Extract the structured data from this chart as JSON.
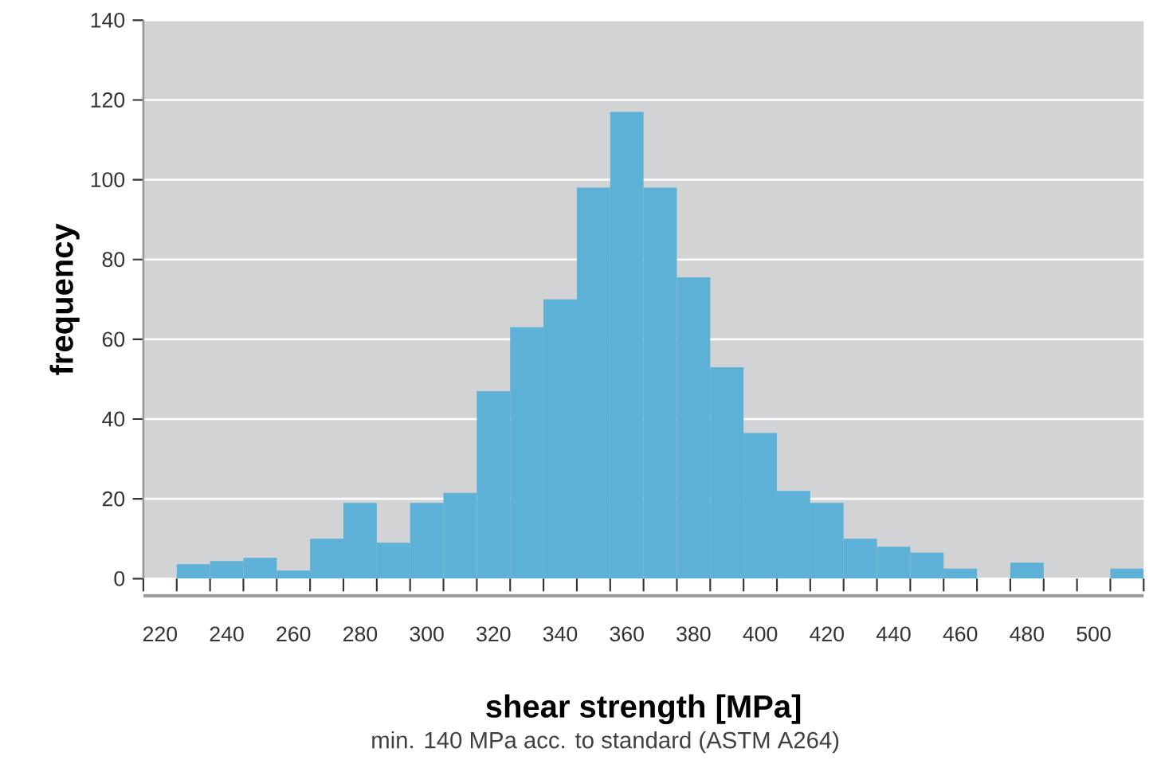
{
  "chart_data": {
    "type": "histogram",
    "xlabel": "shear strength [MPa]",
    "ylabel": "frequency",
    "annotations": [
      "min. 140 MPa acc. to standard (ASTM A264)"
    ],
    "bins": [
      215,
      225,
      235,
      245,
      255,
      265,
      275,
      285,
      295,
      305,
      315,
      325,
      335,
      345,
      355,
      365,
      375,
      385,
      395,
      405,
      415,
      425,
      435,
      445,
      455,
      465,
      475,
      485,
      495,
      505,
      515
    ],
    "values": [
      0,
      3.6,
      4.4,
      5.2,
      2,
      10,
      19,
      9,
      19,
      21.5,
      47,
      63,
      70,
      98,
      117,
      98,
      75.5,
      53,
      36.5,
      22,
      19,
      10,
      8,
      6.5,
      2.5,
      0,
      4,
      0,
      0,
      2.5
    ],
    "color": "#5db1d6",
    "xlim": [
      215,
      515
    ],
    "xticks": [
      220,
      240,
      260,
      280,
      300,
      320,
      340,
      360,
      380,
      400,
      420,
      440,
      460,
      480,
      500
    ],
    "ylim": [
      0,
      140
    ],
    "yticks": [
      0,
      20,
      40,
      60,
      80,
      100,
      120,
      140
    ],
    "grid": "y"
  }
}
